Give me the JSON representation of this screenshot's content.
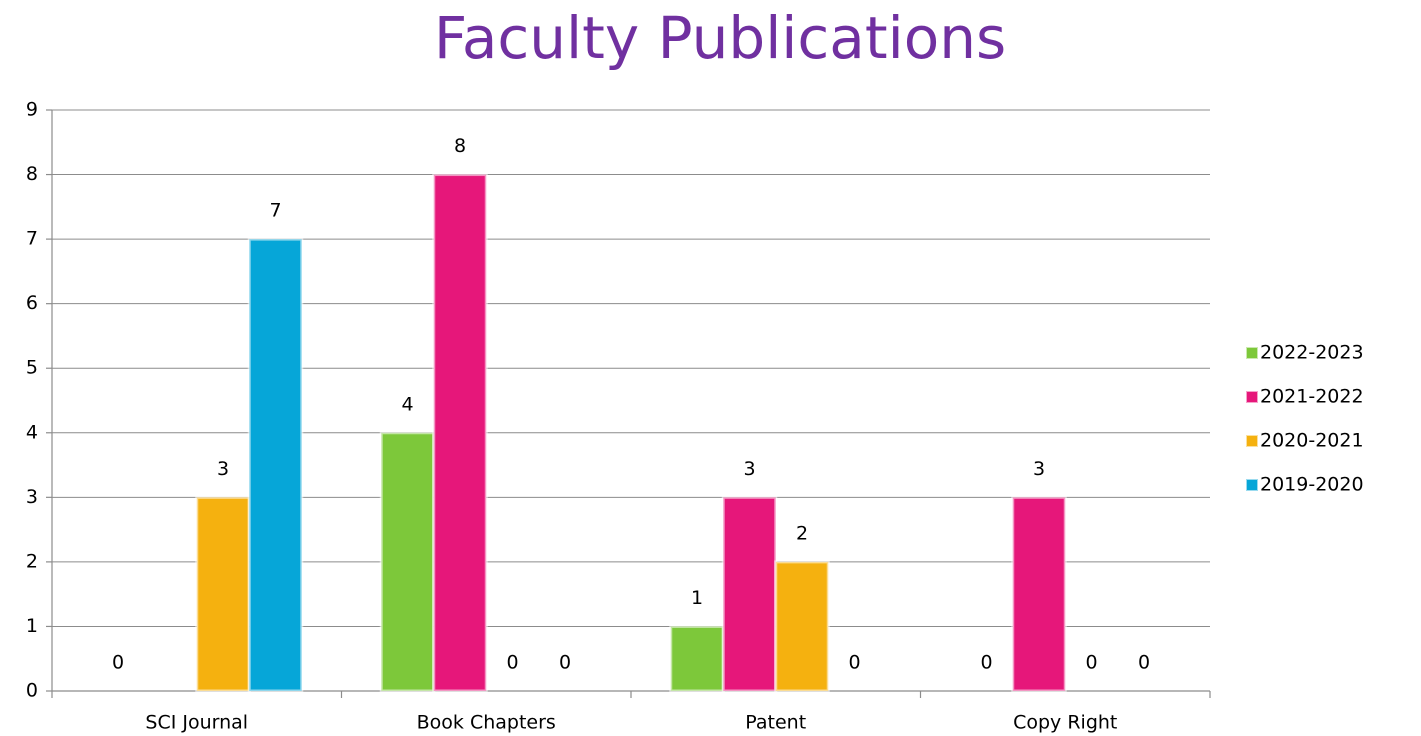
{
  "chart_data": {
    "type": "bar",
    "title": "Faculty Publications",
    "categories": [
      "SCI Journal",
      "Book Chapters",
      "Patent",
      "Copy Right"
    ],
    "series": [
      {
        "name": "2022-2023",
        "color": "#7dc83a",
        "values": [
          0,
          4,
          1,
          0
        ]
      },
      {
        "name": "2021-2022",
        "color": "#e6177a",
        "values": [
          null,
          8,
          3,
          3
        ]
      },
      {
        "name": "2020-2021",
        "color": "#f5b10f",
        "values": [
          3,
          0,
          2,
          0
        ]
      },
      {
        "name": "2019-2020",
        "color": "#06a6d8",
        "values": [
          7,
          0,
          0,
          0
        ]
      }
    ],
    "ylim": [
      0,
      9
    ],
    "yticks": [
      0,
      1,
      2,
      3,
      4,
      5,
      6,
      7,
      8,
      9
    ],
    "grid": true,
    "legend": "right"
  }
}
